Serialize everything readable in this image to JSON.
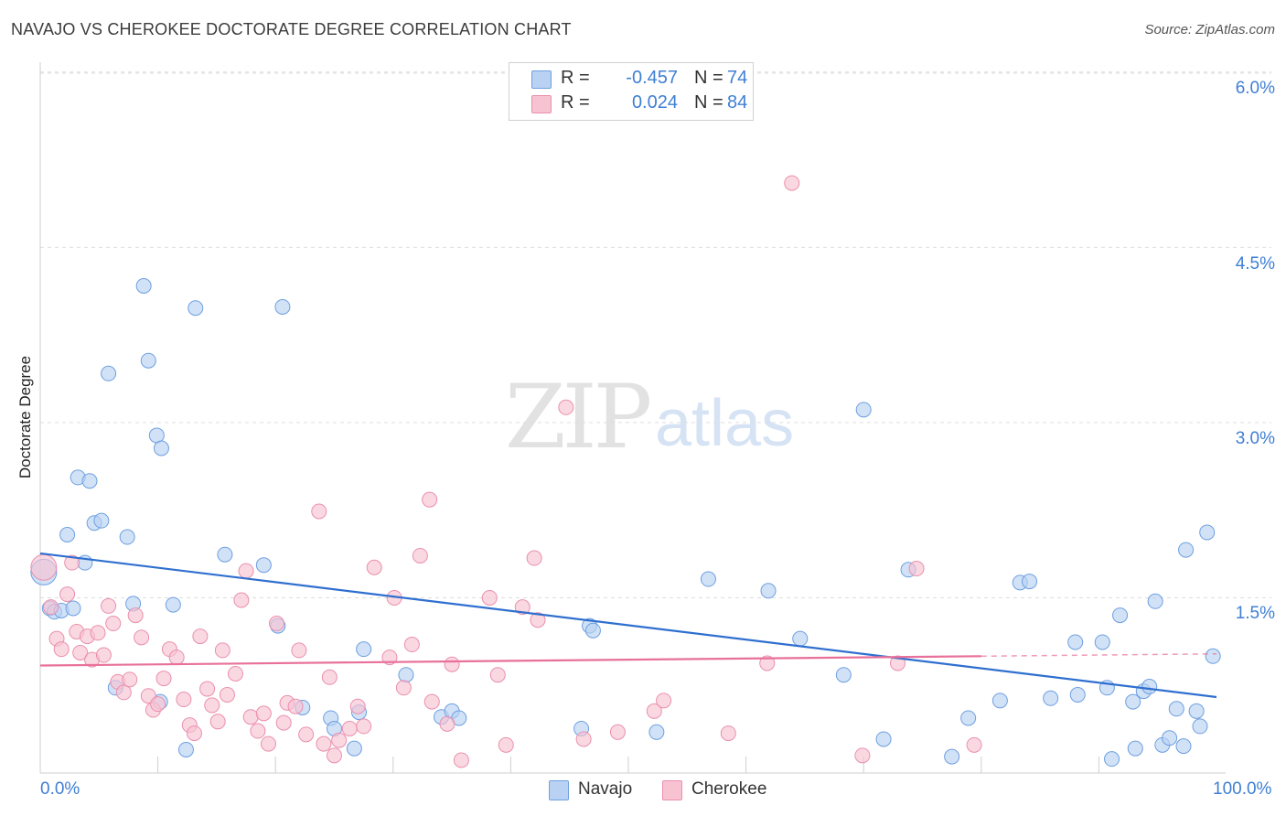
{
  "header": {
    "title": "NAVAJO VS CHEROKEE DOCTORATE DEGREE CORRELATION CHART",
    "source": "Source: ZipAtlas.com"
  },
  "watermark": {
    "zip": "ZIP",
    "atlas": "atlas"
  },
  "legend": {
    "navajo": {
      "r_label": "R =",
      "r_value": "-0.457",
      "n_label": "N =",
      "n_value": "74"
    },
    "cherokee": {
      "r_label": "R =",
      "r_value": "0.024",
      "n_label": "N =",
      "n_value": "84"
    }
  },
  "colors": {
    "navajo_fill": "#b9d2f3",
    "navajo_stroke": "#6e9fe0",
    "navajo_line": "#2f6fcf",
    "cherokee_fill": "#f7c3d3",
    "cherokee_stroke": "#ea8fae",
    "cherokee_line": "#e8709a",
    "axis_label": "#3f7fd4",
    "grid": "#dddddd"
  },
  "chart_data": {
    "type": "scatter",
    "title": "NAVAJO VS CHEROKEE DOCTORATE DEGREE CORRELATION CHART",
    "xlabel": "",
    "ylabel": "Doctorate Degree",
    "xlim": [
      0,
      100
    ],
    "ylim": [
      0,
      6.3
    ],
    "y_ticks": [
      1.5,
      3.0,
      4.5,
      6.0
    ],
    "y_tick_labels": [
      "1.5%",
      "3.0%",
      "4.5%",
      "6.0%"
    ],
    "x_tick_labels": [
      "0.0%",
      "100.0%"
    ],
    "legend_position": "bottom-center",
    "series": [
      {
        "name": "Navajo",
        "points": [
          [
            0.3,
            1.72
          ],
          [
            0.8,
            1.41
          ],
          [
            1.2,
            1.38
          ],
          [
            1.8,
            1.39
          ],
          [
            2.3,
            2.04
          ],
          [
            2.8,
            1.41
          ],
          [
            3.2,
            2.53
          ],
          [
            3.8,
            1.8
          ],
          [
            4.2,
            2.5
          ],
          [
            4.6,
            2.14
          ],
          [
            5.2,
            2.16
          ],
          [
            5.8,
            3.42
          ],
          [
            6.4,
            0.73
          ],
          [
            7.4,
            2.02
          ],
          [
            7.9,
            1.45
          ],
          [
            8.8,
            4.17
          ],
          [
            9.2,
            3.53
          ],
          [
            9.9,
            2.89
          ],
          [
            10.2,
            0.61
          ],
          [
            10.3,
            2.78
          ],
          [
            11.3,
            1.44
          ],
          [
            12.4,
            0.2
          ],
          [
            13.2,
            3.98
          ],
          [
            15.7,
            1.87
          ],
          [
            19.0,
            1.78
          ],
          [
            20.2,
            1.26
          ],
          [
            20.6,
            3.99
          ],
          [
            22.3,
            0.56
          ],
          [
            24.7,
            0.47
          ],
          [
            25.0,
            0.38
          ],
          [
            26.7,
            0.21
          ],
          [
            27.1,
            0.52
          ],
          [
            27.5,
            1.06
          ],
          [
            31.1,
            0.84
          ],
          [
            34.1,
            0.48
          ],
          [
            35.0,
            0.53
          ],
          [
            35.6,
            0.47
          ],
          [
            46.0,
            0.38
          ],
          [
            46.7,
            1.26
          ],
          [
            47.0,
            1.22
          ],
          [
            52.4,
            0.35
          ],
          [
            56.8,
            1.66
          ],
          [
            61.9,
            1.56
          ],
          [
            64.6,
            1.15
          ],
          [
            68.3,
            0.84
          ],
          [
            70.0,
            3.11
          ],
          [
            71.7,
            0.29
          ],
          [
            73.8,
            1.74
          ],
          [
            77.5,
            0.14
          ],
          [
            78.9,
            0.47
          ],
          [
            81.6,
            0.62
          ],
          [
            83.3,
            1.63
          ],
          [
            84.1,
            1.64
          ],
          [
            85.9,
            0.64
          ],
          [
            88.0,
            1.12
          ],
          [
            88.2,
            0.67
          ],
          [
            90.3,
            1.12
          ],
          [
            90.7,
            0.73
          ],
          [
            91.1,
            0.12
          ],
          [
            91.8,
            1.35
          ],
          [
            92.9,
            0.61
          ],
          [
            93.1,
            0.21
          ],
          [
            93.8,
            0.7
          ],
          [
            94.3,
            0.74
          ],
          [
            94.8,
            1.47
          ],
          [
            95.4,
            0.24
          ],
          [
            96.0,
            0.3
          ],
          [
            96.6,
            0.55
          ],
          [
            97.2,
            0.23
          ],
          [
            97.4,
            1.91
          ],
          [
            98.3,
            0.53
          ],
          [
            98.6,
            0.4
          ],
          [
            99.2,
            2.06
          ],
          [
            99.7,
            1.0
          ]
        ]
      },
      {
        "name": "Cherokee",
        "points": [
          [
            0.3,
            1.76
          ],
          [
            0.9,
            1.42
          ],
          [
            1.4,
            1.15
          ],
          [
            1.8,
            1.06
          ],
          [
            2.3,
            1.53
          ],
          [
            2.7,
            1.8
          ],
          [
            3.1,
            1.21
          ],
          [
            3.4,
            1.03
          ],
          [
            4.0,
            1.17
          ],
          [
            4.4,
            0.97
          ],
          [
            4.9,
            1.2
          ],
          [
            5.4,
            1.01
          ],
          [
            5.8,
            1.43
          ],
          [
            6.2,
            1.28
          ],
          [
            6.6,
            0.78
          ],
          [
            7.1,
            0.69
          ],
          [
            7.6,
            0.8
          ],
          [
            8.1,
            1.35
          ],
          [
            8.6,
            1.16
          ],
          [
            9.2,
            0.66
          ],
          [
            9.6,
            0.54
          ],
          [
            10.0,
            0.59
          ],
          [
            10.5,
            0.81
          ],
          [
            11.0,
            1.06
          ],
          [
            11.6,
            0.99
          ],
          [
            12.2,
            0.63
          ],
          [
            12.7,
            0.41
          ],
          [
            13.1,
            0.34
          ],
          [
            13.6,
            1.17
          ],
          [
            14.2,
            0.72
          ],
          [
            14.6,
            0.58
          ],
          [
            15.1,
            0.44
          ],
          [
            15.5,
            1.05
          ],
          [
            15.9,
            0.67
          ],
          [
            16.6,
            0.85
          ],
          [
            17.1,
            1.48
          ],
          [
            17.5,
            1.73
          ],
          [
            17.9,
            0.48
          ],
          [
            18.5,
            0.36
          ],
          [
            19.0,
            0.51
          ],
          [
            19.4,
            0.25
          ],
          [
            20.1,
            1.28
          ],
          [
            20.7,
            0.43
          ],
          [
            21.0,
            0.6
          ],
          [
            21.7,
            0.57
          ],
          [
            22.0,
            1.05
          ],
          [
            22.6,
            0.33
          ],
          [
            23.7,
            2.24
          ],
          [
            24.1,
            0.25
          ],
          [
            24.6,
            0.82
          ],
          [
            25.0,
            0.15
          ],
          [
            25.4,
            0.28
          ],
          [
            26.3,
            0.38
          ],
          [
            27.0,
            0.57
          ],
          [
            27.5,
            0.4
          ],
          [
            28.4,
            1.76
          ],
          [
            29.7,
            0.99
          ],
          [
            30.1,
            1.5
          ],
          [
            30.9,
            0.73
          ],
          [
            31.6,
            1.1
          ],
          [
            32.3,
            1.86
          ],
          [
            33.1,
            2.34
          ],
          [
            33.3,
            0.61
          ],
          [
            34.6,
            0.42
          ],
          [
            35.0,
            0.93
          ],
          [
            35.8,
            0.11
          ],
          [
            38.2,
            1.5
          ],
          [
            38.9,
            0.84
          ],
          [
            39.6,
            0.24
          ],
          [
            41.0,
            1.42
          ],
          [
            42.0,
            1.84
          ],
          [
            42.3,
            1.31
          ],
          [
            44.7,
            3.13
          ],
          [
            46.2,
            0.29
          ],
          [
            49.1,
            0.35
          ],
          [
            52.2,
            0.53
          ],
          [
            53.0,
            0.62
          ],
          [
            58.5,
            0.34
          ],
          [
            61.8,
            0.94
          ],
          [
            63.9,
            5.05
          ],
          [
            69.9,
            0.15
          ],
          [
            72.9,
            0.94
          ],
          [
            74.5,
            1.75
          ],
          [
            79.4,
            0.24
          ]
        ]
      }
    ],
    "trendlines": [
      {
        "series": "Navajo",
        "x": [
          0,
          100
        ],
        "y": [
          1.88,
          0.65
        ]
      },
      {
        "series": "Cherokee",
        "x": [
          0,
          80
        ],
        "y": [
          0.92,
          1.0
        ],
        "dashed_extension_to_x": 100,
        "dashed_extension_y": 1.02
      }
    ]
  },
  "bottom_legend": {
    "navajo": "Navajo",
    "cherokee": "Cherokee"
  }
}
